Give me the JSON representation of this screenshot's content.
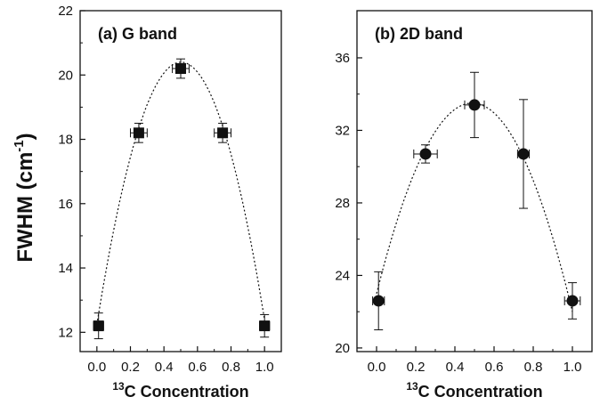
{
  "y_title": {
    "main": "FWHM (cm",
    "sup": "-1",
    "close": ")"
  },
  "chart_data": [
    {
      "type": "scatter",
      "panel_label": "(a) G band",
      "xlabel": {
        "sup": "13",
        "text": "C Concentration"
      },
      "xlim": [
        -0.1,
        1.1
      ],
      "ylim": [
        11.4,
        22
      ],
      "xticks": [
        0.0,
        0.2,
        0.4,
        0.6,
        0.8,
        1.0
      ],
      "xtick_labels": [
        "0.0",
        "0.2",
        "0.4",
        "0.6",
        "0.8",
        "1.0"
      ],
      "yticks": [
        12,
        14,
        16,
        18,
        20,
        22
      ],
      "ytick_labels": [
        "12",
        "14",
        "16",
        "18",
        "20",
        "22"
      ],
      "marker": "square",
      "points": [
        {
          "x": 0.01,
          "y": 12.2,
          "xerr": 0.03,
          "yerr": 0.4
        },
        {
          "x": 0.25,
          "y": 18.2,
          "xerr": 0.05,
          "yerr": 0.3
        },
        {
          "x": 0.5,
          "y": 20.2,
          "xerr": 0.05,
          "yerr": 0.3
        },
        {
          "x": 0.75,
          "y": 18.2,
          "xerr": 0.05,
          "yerr": 0.3
        },
        {
          "x": 1.0,
          "y": 12.2,
          "xerr": 0.03,
          "yerr": 0.35
        }
      ],
      "fit": {
        "style": "dotted",
        "x_range": [
          0.0,
          1.0
        ],
        "coefficients": [
          12.25,
          32.46,
          -32.32
        ]
      }
    },
    {
      "type": "scatter",
      "panel_label": "(b) 2D band",
      "xlabel": {
        "sup": "13",
        "text": "C Concentration"
      },
      "xlim": [
        -0.1,
        1.1
      ],
      "ylim": [
        19.8,
        38.6
      ],
      "xticks": [
        0.0,
        0.2,
        0.4,
        0.6,
        0.8,
        1.0
      ],
      "xtick_labels": [
        "0.0",
        "0.2",
        "0.4",
        "0.6",
        "0.8",
        "1.0"
      ],
      "yticks": [
        20,
        24,
        28,
        32,
        36
      ],
      "ytick_labels": [
        "20",
        "24",
        "28",
        "32",
        "36"
      ],
      "marker": "circle",
      "points": [
        {
          "x": 0.01,
          "y": 22.6,
          "xerr": 0.03,
          "yerr": 1.6
        },
        {
          "x": 0.25,
          "y": 30.7,
          "xerr": 0.06,
          "yerr": 0.5
        },
        {
          "x": 0.5,
          "y": 33.4,
          "xerr": 0.05,
          "yerr": 1.8
        },
        {
          "x": 0.75,
          "y": 30.7,
          "xerr": 0.03,
          "yerr": 3.0
        },
        {
          "x": 1.0,
          "y": 22.6,
          "xerr": 0.04,
          "yerr": 1.0
        }
      ],
      "fit": {
        "style": "dotted",
        "x_range": [
          0.0,
          1.0
        ],
        "coefficients": [
          23.0,
          43.0,
          -44.0
        ]
      }
    }
  ]
}
